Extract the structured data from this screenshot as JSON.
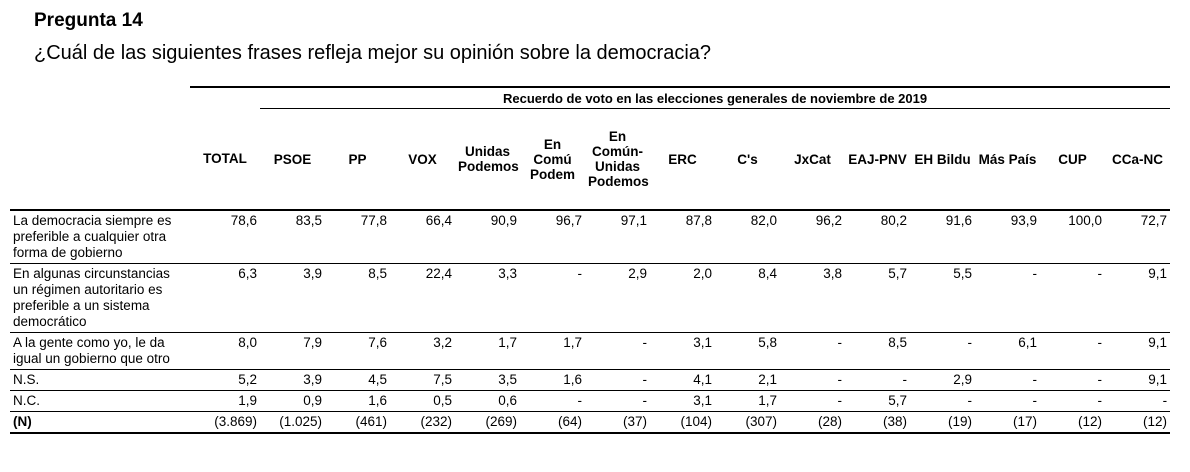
{
  "header": {
    "title": "Pregunta 14",
    "question": "¿Cuál de las siguientes frases refleja mejor su opinión sobre la democracia?"
  },
  "table": {
    "spanner": "Recuerdo de voto en las elecciones generales de noviembre de 2019",
    "columns": [
      "TOTAL",
      "PSOE",
      "PP",
      "VOX",
      "Unidas Podemos",
      "En Comú Podem",
      "En Común-Unidas Podemos",
      "ERC",
      "C's",
      "JxCat",
      "EAJ-PNV",
      "EH Bildu",
      "Más País",
      "CUP",
      "CCa-NC"
    ],
    "rows": [
      {
        "label": "La democracia siempre es preferible a cualquier otra forma de gobierno",
        "values": [
          "78,6",
          "83,5",
          "77,8",
          "66,4",
          "90,9",
          "96,7",
          "97,1",
          "87,8",
          "82,0",
          "96,2",
          "80,2",
          "91,6",
          "93,9",
          "100,0",
          "72,7"
        ]
      },
      {
        "label": "En algunas circunstancias un régimen autoritario es preferible a un sistema democrático",
        "values": [
          "6,3",
          "3,9",
          "8,5",
          "22,4",
          "3,3",
          "-",
          "2,9",
          "2,0",
          "8,4",
          "3,8",
          "5,7",
          "5,5",
          "-",
          "-",
          "9,1"
        ]
      },
      {
        "label": "A la gente como yo, le da igual un gobierno que otro",
        "values": [
          "8,0",
          "7,9",
          "7,6",
          "3,2",
          "1,7",
          "1,7",
          "-",
          "3,1",
          "5,8",
          "-",
          "8,5",
          "-",
          "6,1",
          "-",
          "9,1"
        ]
      },
      {
        "label": "N.S.",
        "values": [
          "5,2",
          "3,9",
          "4,5",
          "7,5",
          "3,5",
          "1,6",
          "-",
          "4,1",
          "2,1",
          "-",
          "-",
          "2,9",
          "-",
          "-",
          "9,1"
        ]
      },
      {
        "label": "N.C.",
        "values": [
          "1,9",
          "0,9",
          "1,6",
          "0,5",
          "0,6",
          "-",
          "-",
          "3,1",
          "1,7",
          "-",
          "5,7",
          "-",
          "-",
          "-",
          "-"
        ]
      },
      {
        "label": "(N)",
        "values": [
          "(3.869)",
          "(1.025)",
          "(461)",
          "(232)",
          "(269)",
          "(64)",
          "(37)",
          "(104)",
          "(307)",
          "(28)",
          "(38)",
          "(19)",
          "(17)",
          "(12)",
          "(12)"
        ]
      }
    ]
  }
}
